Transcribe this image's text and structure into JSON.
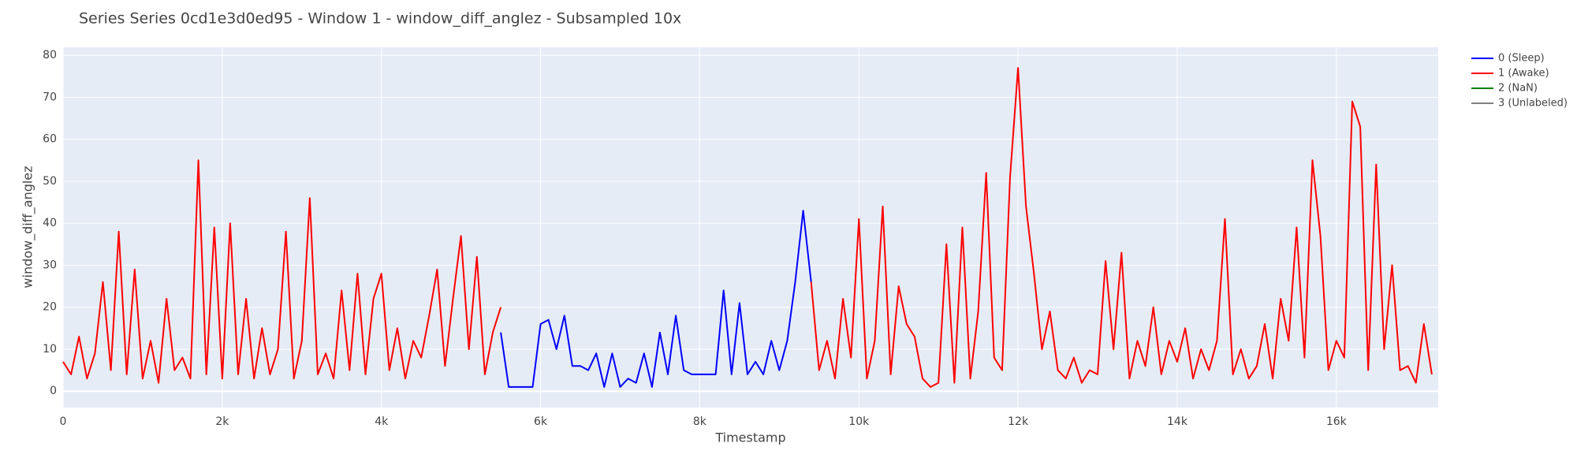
{
  "chart_data": {
    "type": "line",
    "title": "Series Series 0cd1e3d0ed95 - Window 1 - window_diff_anglez - Subsampled 10x",
    "x_label": "Timestamp",
    "y_label": "window_diff_anglez",
    "xlim": [
      0,
      17280
    ],
    "ylim": [
      -3.9,
      81.9
    ],
    "xticks": [
      0,
      {
        "value": 2000,
        "label": "2k"
      },
      {
        "value": 4000,
        "label": "4k"
      },
      {
        "value": 6000,
        "label": "6k"
      },
      {
        "value": 8000,
        "label": "8k"
      },
      {
        "value": 10000,
        "label": "10k"
      },
      {
        "value": 12000,
        "label": "12k"
      },
      {
        "value": 14000,
        "label": "14k"
      },
      {
        "value": 16000,
        "label": "16k"
      }
    ],
    "yticks": [
      0,
      10,
      20,
      30,
      40,
      50,
      60,
      70,
      80
    ],
    "grid": true,
    "legend": "right",
    "series": [
      {
        "name": "0 (Sleep)",
        "color": "#0000ff",
        "x": [
          5500,
          5600,
          5700,
          5800,
          5900,
          6000,
          6100,
          6200,
          6300,
          6400,
          6500,
          6600,
          6700,
          6800,
          6900,
          7000,
          7100,
          7200,
          7300,
          7400,
          7500,
          7600,
          7700,
          7800,
          7900,
          8000,
          8100,
          8200,
          8300,
          8400,
          8500,
          8600,
          8700,
          8800,
          8900,
          9000,
          9100,
          9200,
          9300,
          9400
        ],
        "values": [
          14,
          1,
          1,
          1,
          1,
          16,
          17,
          10,
          18,
          6,
          6,
          5,
          9,
          1,
          9,
          1,
          3,
          2,
          9,
          1,
          14,
          4,
          18,
          5,
          4,
          4,
          4,
          4,
          24,
          4,
          21,
          4,
          7,
          4,
          12,
          5,
          12,
          26,
          43,
          26
        ]
      },
      {
        "name": "1 (Awake)",
        "color": "#ff0000",
        "x": [
          0,
          100,
          200,
          300,
          400,
          500,
          600,
          700,
          800,
          900,
          1000,
          1100,
          1200,
          1300,
          1400,
          1500,
          1600,
          1700,
          1800,
          1900,
          2000,
          2100,
          2200,
          2300,
          2400,
          2500,
          2600,
          2700,
          2800,
          2900,
          3000,
          3100,
          3200,
          3300,
          3400,
          3500,
          3600,
          3700,
          3800,
          3900,
          4000,
          4100,
          4200,
          4300,
          4400,
          4500,
          4600,
          4700,
          4800,
          4900,
          5000,
          5100,
          5200,
          5300,
          5400,
          5500,
          7500,
          9400,
          9500,
          9600,
          9700,
          9800,
          9900,
          10000,
          10100,
          10200,
          10300,
          10400,
          10500,
          10600,
          10700,
          10800,
          10900,
          11000,
          11100,
          11200,
          11300,
          11400,
          11500,
          11600,
          11700,
          11800,
          11900,
          12000,
          12100,
          12200,
          12300,
          12400,
          12500,
          12600,
          12700,
          12800,
          12900,
          13000,
          13100,
          13200,
          13300,
          13400,
          13500,
          13600,
          13700,
          13800,
          13900,
          14000,
          14100,
          14200,
          14300,
          14400,
          14500,
          14600,
          14700,
          14800,
          14900,
          15000,
          15100,
          15200,
          15300,
          15400,
          15500,
          15600,
          15700,
          15800,
          15900,
          16000,
          16100,
          16200,
          16300,
          16400,
          16500,
          16600,
          16700,
          16800,
          16900,
          17000,
          17100,
          17200
        ],
        "values": [
          7,
          4,
          13,
          3,
          9,
          26,
          5,
          38,
          4,
          29,
          3,
          12,
          2,
          22,
          5,
          8,
          3,
          55,
          4,
          39,
          3,
          40,
          4,
          22,
          3,
          15,
          4,
          10,
          38,
          3,
          12,
          46,
          4,
          9,
          3,
          24,
          5,
          28,
          4,
          22,
          28,
          5,
          15,
          3,
          12,
          8,
          18,
          29,
          6,
          22,
          37,
          10,
          32,
          4,
          14,
          20,
          null,
          26,
          5,
          12,
          3,
          22,
          8,
          41,
          3,
          12,
          44,
          4,
          25,
          16,
          13,
          3,
          1,
          2,
          35,
          2,
          39,
          3,
          19,
          52,
          8,
          5,
          51,
          77,
          44,
          28,
          10,
          19,
          5,
          3,
          8,
          2,
          5,
          4,
          31,
          10,
          33,
          3,
          12,
          6,
          20,
          4,
          12,
          7,
          15,
          3,
          10,
          5,
          12,
          41,
          4,
          10,
          3,
          6,
          16,
          3,
          22,
          12,
          39,
          8,
          55,
          37,
          5,
          12,
          8,
          69,
          63,
          5,
          54,
          10,
          30,
          5,
          6,
          2,
          16,
          4
        ]
      },
      {
        "name": "2 (NaN)",
        "color": "#008000",
        "x": [],
        "values": []
      },
      {
        "name": "3 (Unlabeled)",
        "color": "#808080",
        "x": [],
        "values": []
      }
    ]
  }
}
